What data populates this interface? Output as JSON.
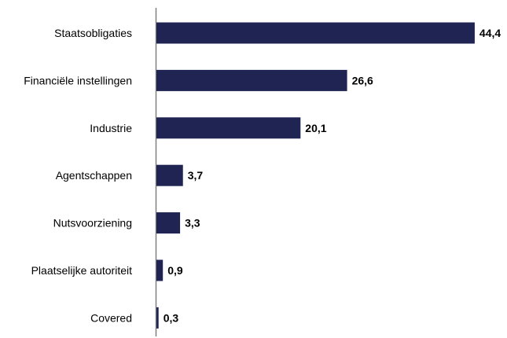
{
  "chart_data": {
    "type": "bar",
    "orientation": "horizontal",
    "categories": [
      "Staatsobligaties",
      "Financiële instellingen",
      "Industrie",
      "Agentschappen",
      "Nutsvoorziening",
      "Plaatselijke autoriteit",
      "Covered"
    ],
    "values": [
      44.4,
      26.6,
      20.1,
      3.7,
      3.3,
      0.9,
      0.3
    ],
    "value_labels": [
      "44,4",
      "26,6",
      "20,1",
      "3,7",
      "3,3",
      "0,9",
      "0,3"
    ],
    "bar_color": "#1f2452",
    "axis_color": "#808080",
    "grid": false,
    "legend": "none"
  }
}
